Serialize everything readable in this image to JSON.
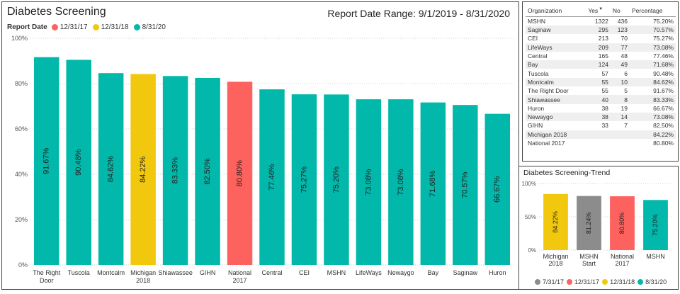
{
  "main": {
    "title": "Diabetes Screening",
    "date_range": "Report Date Range: 9/1/2019 - 8/31/2020",
    "legend_title": "Report Date",
    "legend": [
      {
        "label": "12/31/17",
        "color": "#fd625e"
      },
      {
        "label": "12/31/18",
        "color": "#f2c80f"
      },
      {
        "label": "8/31/20",
        "color": "#01b8aa"
      }
    ]
  },
  "table": {
    "headers": [
      "Organization",
      "Yes",
      "No",
      "Percentage"
    ],
    "rows": [
      [
        "MSHN",
        "1322",
        "436",
        "75.20%"
      ],
      [
        "Saginaw",
        "295",
        "123",
        "70.57%"
      ],
      [
        "CEI",
        "213",
        "70",
        "75.27%"
      ],
      [
        "LifeWays",
        "209",
        "77",
        "73.08%"
      ],
      [
        "Central",
        "165",
        "48",
        "77.46%"
      ],
      [
        "Bay",
        "124",
        "49",
        "71.68%"
      ],
      [
        "Tuscola",
        "57",
        "6",
        "90.48%"
      ],
      [
        "Montcalm",
        "55",
        "10",
        "84.62%"
      ],
      [
        "The Right Door",
        "55",
        "5",
        "91.67%"
      ],
      [
        "Shiawassee",
        "40",
        "8",
        "83.33%"
      ],
      [
        "Huron",
        "38",
        "19",
        "66.67%"
      ],
      [
        "Newaygo",
        "38",
        "14",
        "73.08%"
      ],
      [
        "GIHN",
        "33",
        "7",
        "82.50%"
      ],
      [
        "Michigan 2018",
        "",
        "",
        "84.22%"
      ],
      [
        "National 2017",
        "",
        "",
        "80.80%"
      ]
    ]
  },
  "trend": {
    "title": "Diabetes Screening-Trend",
    "legend": [
      {
        "label": "7/31/17",
        "color": "#8c8c8c"
      },
      {
        "label": "12/31/17",
        "color": "#fd625e"
      },
      {
        "label": "12/31/18",
        "color": "#f2c80f"
      },
      {
        "label": "8/31/20",
        "color": "#01b8aa"
      }
    ]
  },
  "chart_data": [
    {
      "type": "bar",
      "title": "Diabetes Screening",
      "xlabel": "",
      "ylabel": "",
      "ylim": [
        0,
        100
      ],
      "yticks": [
        "0%",
        "20%",
        "40%",
        "60%",
        "80%",
        "100%"
      ],
      "ytick_values": [
        0,
        20,
        40,
        60,
        80,
        100
      ],
      "legend_position": "top-left",
      "grid": true,
      "categories": [
        [
          "The Right",
          "Door"
        ],
        [
          "Tuscola"
        ],
        [
          "Montcalm"
        ],
        [
          "Michigan",
          "2018"
        ],
        [
          "Shiawassee"
        ],
        [
          "GIHN"
        ],
        [
          "National",
          "2017"
        ],
        [
          "Central"
        ],
        [
          "CEI"
        ],
        [
          "MSHN"
        ],
        [
          "LifeWays"
        ],
        [
          "Newaygo"
        ],
        [
          "Bay"
        ],
        [
          "Saginaw"
        ],
        [
          "Huron"
        ]
      ],
      "values": [
        91.67,
        90.48,
        84.62,
        84.22,
        83.33,
        82.5,
        80.8,
        77.46,
        75.27,
        75.2,
        73.08,
        73.08,
        71.68,
        70.57,
        66.67
      ],
      "labels": [
        "91.67%",
        "90.48%",
        "84.62%",
        "84.22%",
        "83.33%",
        "82.50%",
        "80.80%",
        "77.46%",
        "75.27%",
        "75.20%",
        "73.08%",
        "73.08%",
        "71.68%",
        "70.57%",
        "66.67%"
      ],
      "colors": [
        "#01b8aa",
        "#01b8aa",
        "#01b8aa",
        "#f2c80f",
        "#01b8aa",
        "#01b8aa",
        "#fd625e",
        "#01b8aa",
        "#01b8aa",
        "#01b8aa",
        "#01b8aa",
        "#01b8aa",
        "#01b8aa",
        "#01b8aa",
        "#01b8aa"
      ]
    },
    {
      "type": "bar",
      "title": "Diabetes Screening-Trend",
      "xlabel": "",
      "ylabel": "",
      "ylim": [
        0,
        100
      ],
      "yticks": [
        "0%",
        "50%",
        "100%"
      ],
      "ytick_values": [
        0,
        50,
        100
      ],
      "legend_position": "bottom",
      "grid": true,
      "categories": [
        [
          "Michigan",
          "2018"
        ],
        [
          "MSHN",
          "Start"
        ],
        [
          "National",
          "2017"
        ],
        [
          "MSHN"
        ]
      ],
      "values": [
        84.22,
        81.24,
        80.8,
        75.2
      ],
      "labels": [
        "84.22%",
        "81.24%",
        "80.80%",
        "75.20%"
      ],
      "colors": [
        "#f2c80f",
        "#8c8c8c",
        "#fd625e",
        "#01b8aa"
      ]
    }
  ]
}
